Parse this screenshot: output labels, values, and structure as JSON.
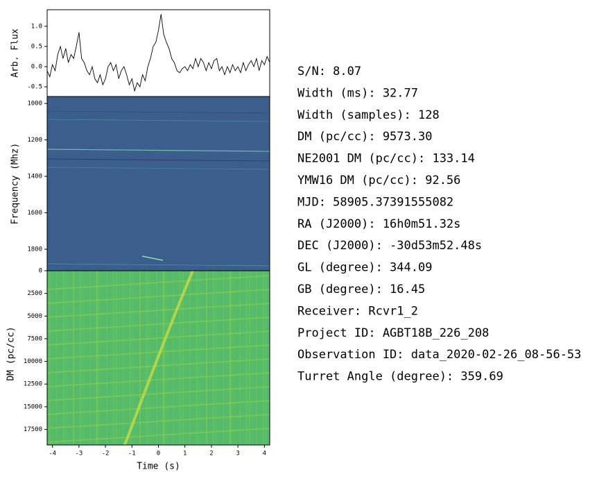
{
  "chart_data": [
    {
      "type": "line",
      "ylabel": "Arb. Flux",
      "color": "#000000",
      "x": [
        -4.2,
        -4.1,
        -4.0,
        -3.9,
        -3.8,
        -3.7,
        -3.6,
        -3.5,
        -3.4,
        -3.3,
        -3.2,
        -3.1,
        -3.0,
        -2.9,
        -2.8,
        -2.7,
        -2.6,
        -2.5,
        -2.4,
        -2.3,
        -2.2,
        -2.1,
        -2.0,
        -1.9,
        -1.8,
        -1.7,
        -1.6,
        -1.5,
        -1.4,
        -1.3,
        -1.2,
        -1.1,
        -1.0,
        -0.9,
        -0.8,
        -0.7,
        -0.6,
        -0.5,
        -0.4,
        -0.3,
        -0.2,
        -0.1,
        0.0,
        0.1,
        0.2,
        0.3,
        0.4,
        0.5,
        0.6,
        0.7,
        0.8,
        0.9,
        1.0,
        1.1,
        1.2,
        1.3,
        1.4,
        1.5,
        1.6,
        1.7,
        1.8,
        1.9,
        2.0,
        2.1,
        2.2,
        2.3,
        2.4,
        2.5,
        2.6,
        2.7,
        2.8,
        2.9,
        3.0,
        3.1,
        3.2,
        3.3,
        3.4,
        3.5,
        3.6,
        3.7,
        3.8,
        3.9,
        4.0,
        4.1,
        4.2
      ],
      "values": [
        -0.1,
        -0.25,
        0.05,
        -0.1,
        0.3,
        0.5,
        0.2,
        0.45,
        0.1,
        0.3,
        0.2,
        0.5,
        0.85,
        0.2,
        0.1,
        -0.1,
        -0.2,
        0.0,
        -0.3,
        -0.4,
        -0.2,
        -0.45,
        -0.3,
        0.0,
        0.1,
        -0.1,
        0.05,
        -0.3,
        -0.1,
        0.0,
        -0.2,
        -0.45,
        -0.3,
        -0.6,
        -0.4,
        -0.5,
        -0.2,
        -0.35,
        0.0,
        0.2,
        0.5,
        0.6,
        0.9,
        1.3,
        0.8,
        0.6,
        0.45,
        0.2,
        0.1,
        -0.1,
        -0.15,
        -0.05,
        0.0,
        -0.1,
        0.05,
        -0.05,
        0.2,
        0.0,
        0.2,
        0.1,
        -0.1,
        0.1,
        -0.05,
        0.15,
        0.2,
        -0.1,
        0.0,
        -0.2,
        0.0,
        -0.15,
        0.05,
        -0.1,
        0.0,
        -0.15,
        0.1,
        -0.1,
        0.05,
        0.15,
        0.0,
        0.2,
        -0.1,
        0.15,
        0.05,
        0.25,
        0.1
      ],
      "xlim": [
        -4.2,
        4.2
      ],
      "ylim": [
        -0.74,
        1.41
      ],
      "yticks": [
        -0.5,
        {
          "value": 0,
          "label": "0.0"
        },
        0.5,
        {
          "value": 1,
          "label": "1.0"
        }
      ]
    },
    {
      "type": "heatmap",
      "ylabel": "Frequency (Mhz)",
      "color": "#3b5e8c",
      "xlim": [
        -4.2,
        4.2
      ],
      "ylim": [
        1918,
        962
      ],
      "yticks": [
        1000,
        1200,
        1400,
        1600,
        1800
      ]
    },
    {
      "type": "heatmap",
      "ylabel": "DM (pc/cc)",
      "xlabel": "Time (s)",
      "color": "#55bb6a",
      "xlim": [
        -4.2,
        4.2
      ],
      "ylim": [
        19220,
        0
      ],
      "xticks": [
        -4,
        -3,
        -2,
        -1,
        0,
        1,
        2,
        3,
        4
      ],
      "yticks": [
        0,
        2500,
        5000,
        7500,
        10000,
        12500,
        15000,
        17500
      ]
    }
  ],
  "info": [
    "S/N: 8.07",
    "Width (ms): 32.77",
    "Width (samples): 128",
    "DM (pc/cc): 9573.30",
    "NE2001 DM (pc/cc): 133.14",
    "YMW16 DM (pc/cc): 92.56",
    "MJD: 58905.37391555082",
    "RA (J2000): 16h0m51.32s",
    "DEC (J2000): -30d53m52.48s",
    "GL (degree): 344.09",
    "GB (degree): 16.45",
    "Receiver: Rcvr1_2",
    "Project ID: AGBT18B_226_208",
    "Observation ID: data_2020-02-26_08-56-53",
    "Turret Angle (degree): 359.69"
  ]
}
